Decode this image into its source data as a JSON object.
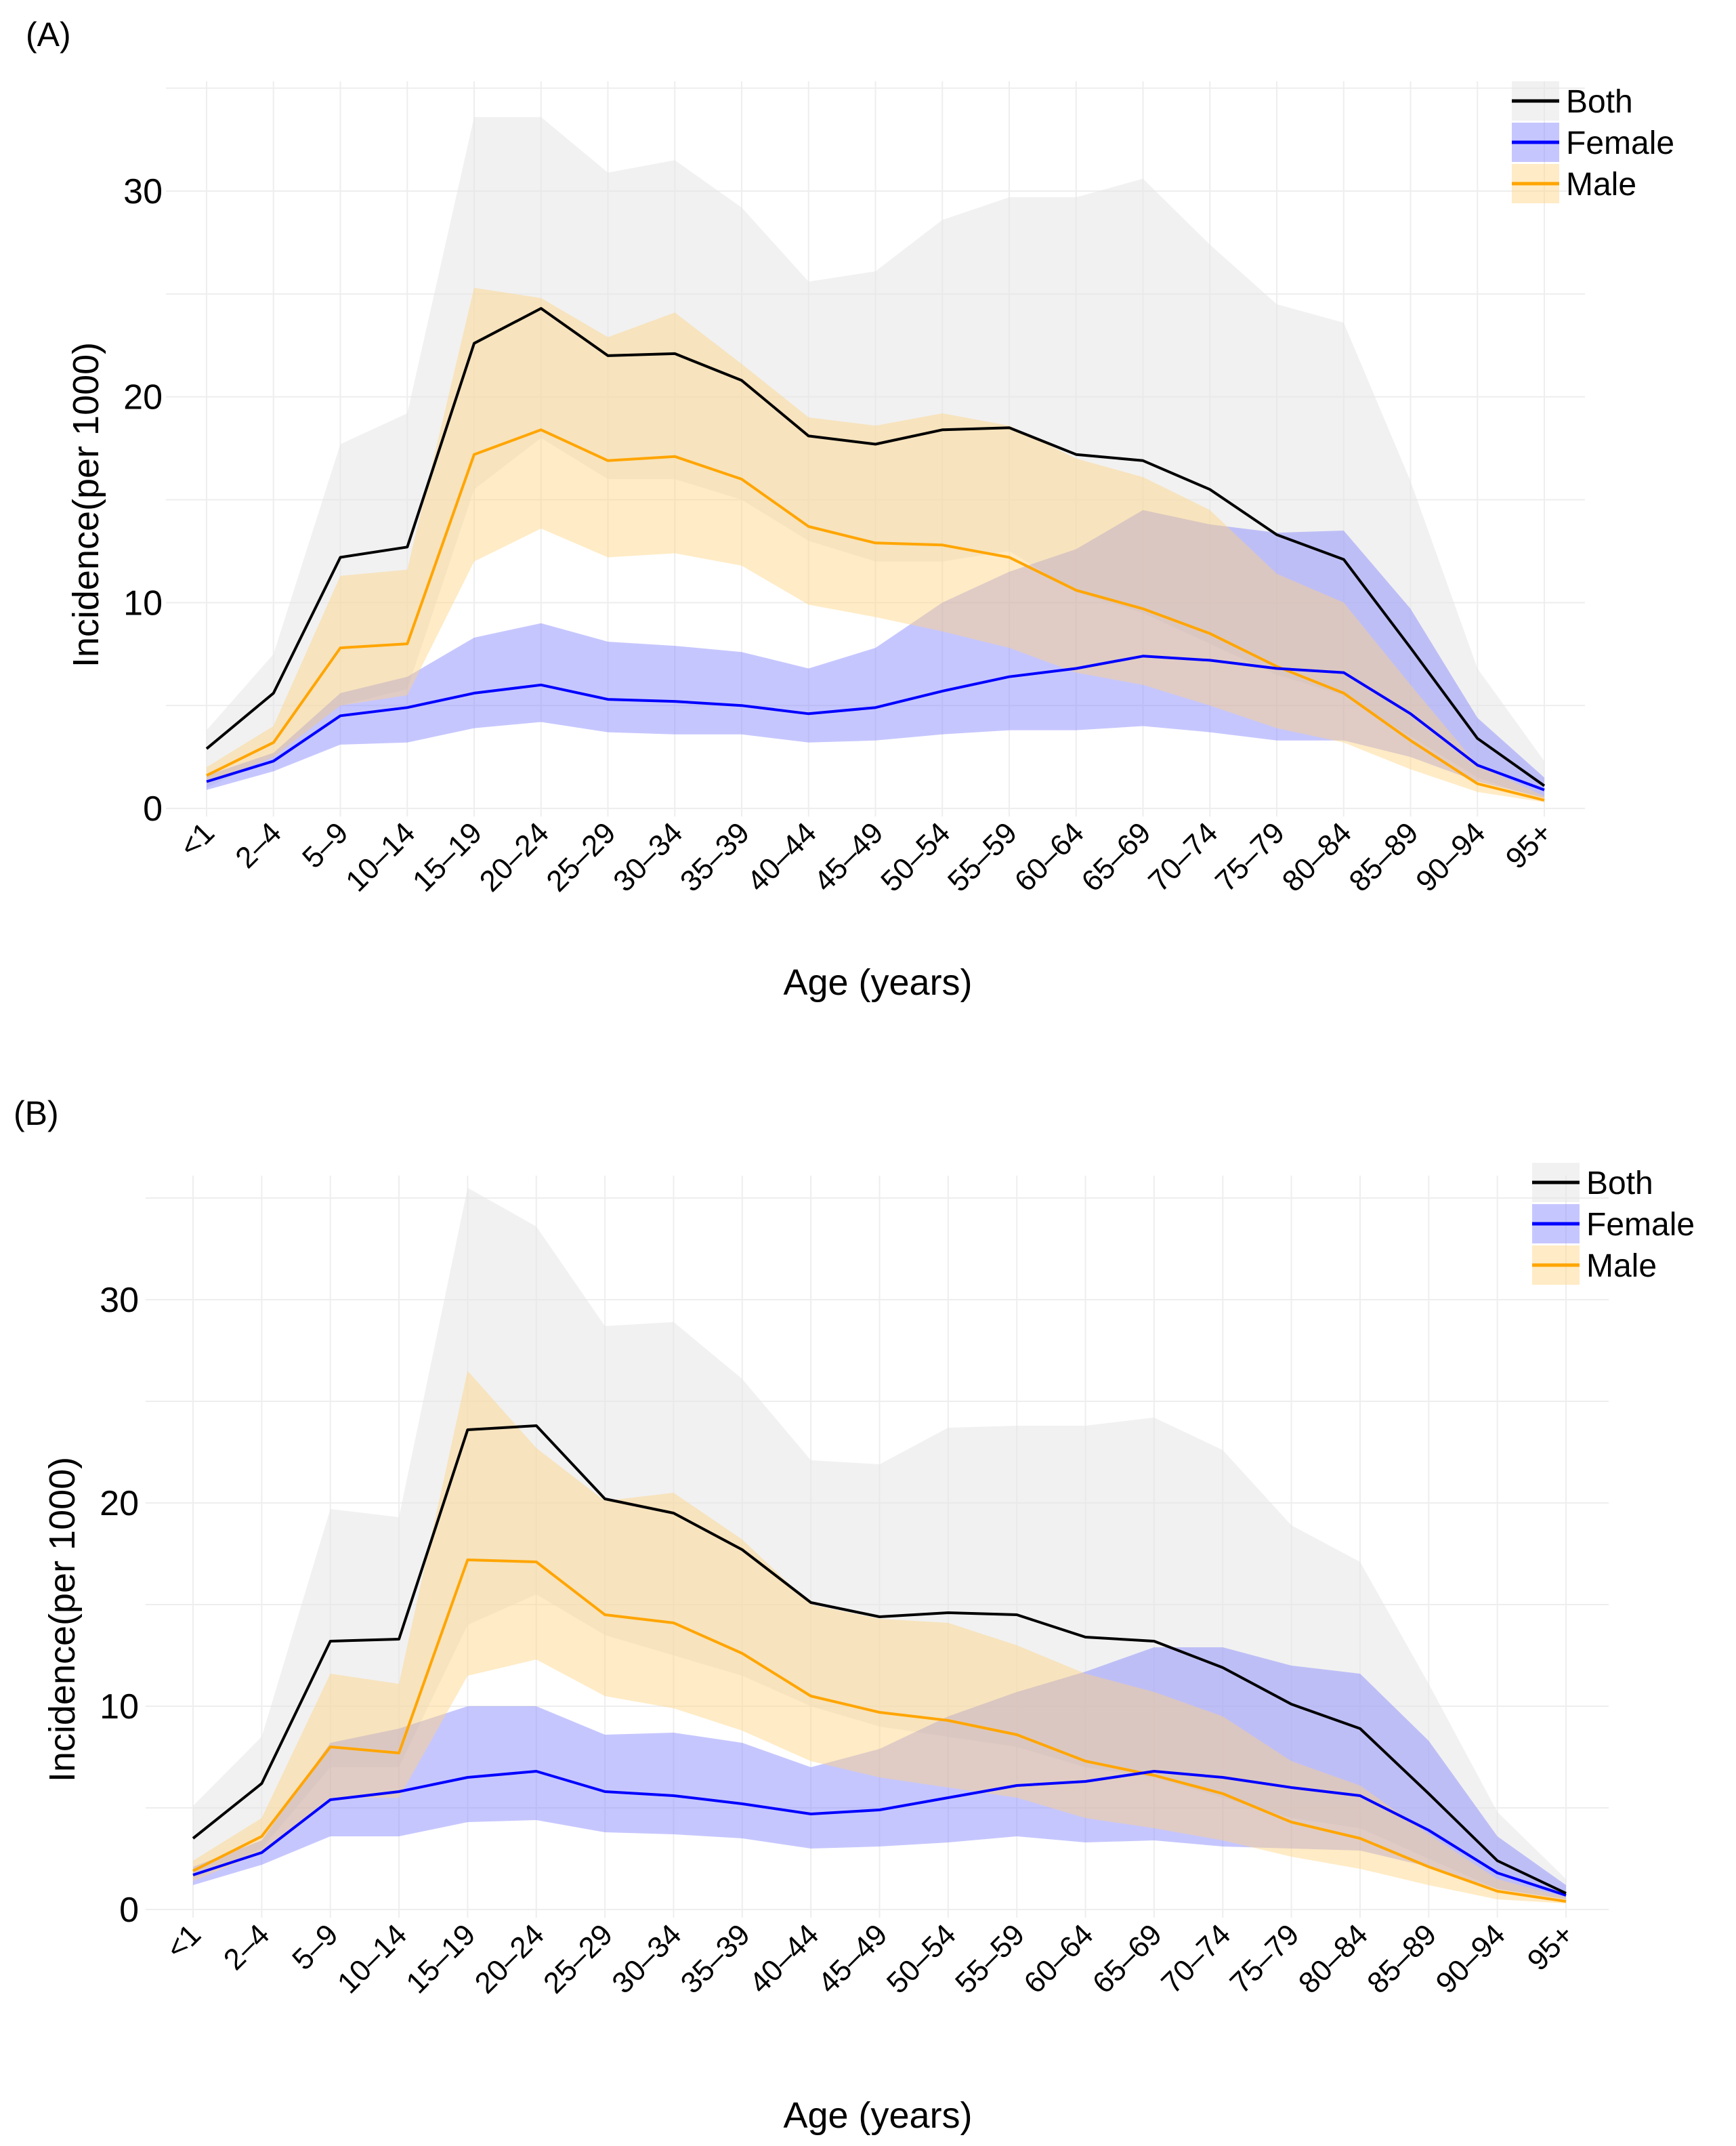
{
  "colors": {
    "both_line": "#000000",
    "both_band": "#e6e6e6",
    "female_line": "#0000ff",
    "female_band": "#8080ff",
    "male_line": "#ffa500",
    "male_band": "#ffd27f",
    "grid": "#eeeeee"
  },
  "chart_data": [
    {
      "id": "A",
      "panel_label": "(A)",
      "type": "line",
      "xlabel": "Age (years)",
      "ylabel": "Incidence(per 1000)",
      "ylim": [
        0,
        35
      ],
      "yticks": [
        0,
        10,
        20,
        30
      ],
      "grid": true,
      "legend_position": "top-right",
      "legend_labels": [
        "Both",
        "Female",
        "Male"
      ],
      "categories": [
        "<1",
        "2–4",
        "5–9",
        "10–14",
        "15–19",
        "20–24",
        "25–29",
        "30–34",
        "35–39",
        "40–44",
        "45–49",
        "50–54",
        "55–59",
        "60–64",
        "65–69",
        "70–74",
        "75–79",
        "80–84",
        "85–89",
        "90–94",
        "95+"
      ],
      "series": [
        {
          "name": "Both",
          "values": [
            2.9,
            5.6,
            12.2,
            12.7,
            22.6,
            24.3,
            22.0,
            22.1,
            20.8,
            18.1,
            17.7,
            18.4,
            18.5,
            17.2,
            16.9,
            15.5,
            13.3,
            12.1,
            7.8,
            3.4,
            1.1
          ],
          "lower": [
            1.0,
            2.5,
            5.0,
            5.8,
            15.5,
            18.0,
            16.0,
            16.0,
            15.0,
            13.0,
            12.0,
            12.0,
            12.5,
            10.5,
            9.5,
            8.0,
            6.5,
            5.5,
            3.5,
            1.5,
            0.4
          ],
          "upper": [
            3.8,
            7.5,
            17.7,
            19.2,
            33.6,
            33.6,
            30.9,
            31.5,
            29.2,
            25.6,
            26.1,
            28.6,
            29.7,
            29.7,
            30.6,
            27.4,
            24.5,
            23.6,
            15.9,
            6.8,
            2.3
          ]
        },
        {
          "name": "Female",
          "values": [
            1.3,
            2.3,
            4.5,
            4.9,
            5.6,
            6.0,
            5.3,
            5.2,
            5.0,
            4.6,
            4.9,
            5.7,
            6.4,
            6.8,
            7.4,
            7.2,
            6.8,
            6.6,
            4.6,
            2.1,
            0.9
          ],
          "lower": [
            0.9,
            1.8,
            3.1,
            3.2,
            3.9,
            4.2,
            3.7,
            3.6,
            3.6,
            3.2,
            3.3,
            3.6,
            3.8,
            3.8,
            4.0,
            3.7,
            3.3,
            3.3,
            2.5,
            1.3,
            0.5
          ],
          "upper": [
            1.6,
            2.7,
            5.6,
            6.4,
            8.3,
            9.0,
            8.1,
            7.9,
            7.6,
            6.8,
            7.8,
            10.0,
            11.5,
            12.6,
            14.5,
            13.8,
            13.4,
            13.5,
            9.7,
            4.4,
            1.5
          ]
        },
        {
          "name": "Male",
          "values": [
            1.6,
            3.2,
            7.8,
            8.0,
            17.2,
            18.4,
            16.9,
            17.1,
            16.0,
            13.7,
            12.9,
            12.8,
            12.2,
            10.6,
            9.7,
            8.5,
            6.9,
            5.6,
            3.3,
            1.2,
            0.4
          ],
          "lower": [
            1.2,
            2.5,
            5.0,
            5.5,
            12.0,
            13.6,
            12.2,
            12.4,
            11.8,
            9.9,
            9.3,
            8.6,
            7.8,
            6.6,
            6.0,
            5.0,
            3.9,
            3.2,
            1.9,
            0.8,
            0.3
          ],
          "upper": [
            2.0,
            4.0,
            11.3,
            11.6,
            25.3,
            24.8,
            22.9,
            24.1,
            21.6,
            19.0,
            18.6,
            19.2,
            18.6,
            17.0,
            16.1,
            14.5,
            11.4,
            10.0,
            6.0,
            2.1,
            0.6
          ]
        }
      ]
    },
    {
      "id": "B",
      "panel_label": "(B)",
      "type": "line",
      "xlabel": "Age (years)",
      "ylabel": "Incidence(per 1000)",
      "ylim": [
        0,
        36
      ],
      "yticks": [
        0,
        10,
        20,
        30
      ],
      "grid": true,
      "legend_position": "top-right",
      "legend_labels": [
        "Both",
        "Female",
        "Male"
      ],
      "categories": [
        "<1",
        "2–4",
        "5–9",
        "10–14",
        "15–19",
        "20–24",
        "25–29",
        "30–34",
        "35–39",
        "40–44",
        "45–49",
        "50–54",
        "55–59",
        "60–64",
        "65–69",
        "70–74",
        "75–79",
        "80–84",
        "85–89",
        "90–94",
        "95+"
      ],
      "series": [
        {
          "name": "Both",
          "values": [
            3.5,
            6.2,
            13.2,
            13.3,
            23.6,
            23.8,
            20.2,
            19.5,
            17.7,
            15.1,
            14.4,
            14.6,
            14.5,
            13.4,
            13.2,
            11.9,
            10.1,
            8.9,
            5.7,
            2.4,
            0.8
          ],
          "lower": [
            1.5,
            3.0,
            7.0,
            7.0,
            14.0,
            15.5,
            13.5,
            12.5,
            11.5,
            10.0,
            9.0,
            8.5,
            8.0,
            7.0,
            6.5,
            5.5,
            4.5,
            4.0,
            2.5,
            1.0,
            0.4
          ],
          "upper": [
            5.1,
            8.5,
            19.7,
            19.3,
            35.5,
            33.6,
            28.7,
            28.9,
            26.1,
            22.1,
            21.9,
            23.7,
            23.8,
            23.8,
            24.2,
            22.6,
            18.9,
            17.1,
            11.1,
            4.8,
            1.5
          ]
        },
        {
          "name": "Female",
          "values": [
            1.7,
            2.8,
            5.4,
            5.8,
            6.5,
            6.8,
            5.8,
            5.6,
            5.2,
            4.7,
            4.9,
            5.5,
            6.1,
            6.3,
            6.8,
            6.5,
            6.0,
            5.6,
            3.9,
            1.8,
            0.7
          ],
          "lower": [
            1.2,
            2.2,
            3.6,
            3.6,
            4.3,
            4.4,
            3.8,
            3.7,
            3.5,
            3.0,
            3.1,
            3.3,
            3.6,
            3.3,
            3.4,
            3.1,
            3.0,
            2.9,
            2.1,
            1.0,
            0.5
          ],
          "upper": [
            2.1,
            3.4,
            8.2,
            8.9,
            10.0,
            10.0,
            8.6,
            8.7,
            8.2,
            7.0,
            7.9,
            9.5,
            10.7,
            11.7,
            12.9,
            12.9,
            12.0,
            11.6,
            8.3,
            3.6,
            1.2
          ]
        },
        {
          "name": "Male",
          "values": [
            1.9,
            3.6,
            8.0,
            7.7,
            17.2,
            17.1,
            14.5,
            14.1,
            12.6,
            10.5,
            9.7,
            9.3,
            8.6,
            7.3,
            6.6,
            5.7,
            4.3,
            3.5,
            2.1,
            0.9,
            0.4
          ],
          "lower": [
            1.4,
            2.8,
            5.5,
            5.5,
            11.5,
            12.3,
            10.5,
            9.9,
            8.8,
            7.3,
            6.5,
            6.0,
            5.5,
            4.5,
            4.0,
            3.4,
            2.6,
            2.0,
            1.2,
            0.5,
            0.3
          ],
          "upper": [
            2.4,
            4.5,
            11.6,
            11.1,
            26.5,
            22.7,
            20.1,
            20.5,
            18.2,
            15.0,
            14.3,
            14.1,
            13.0,
            11.6,
            10.7,
            9.5,
            7.3,
            6.1,
            3.7,
            1.5,
            0.6
          ]
        }
      ]
    }
  ]
}
